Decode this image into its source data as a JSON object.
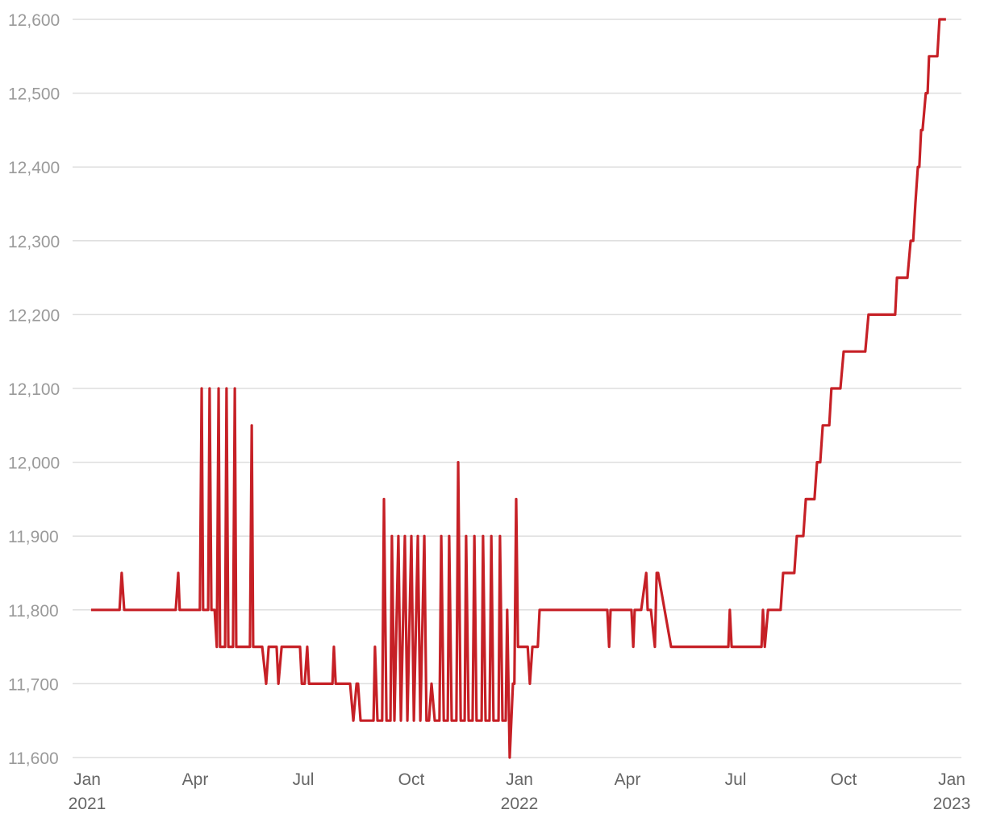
{
  "chart_data": {
    "type": "line",
    "x": [
      0.11,
      0.9,
      0.96,
      1.03,
      2.46,
      2.53,
      2.57,
      3.13,
      3.18,
      3.22,
      3.36,
      3.4,
      3.45,
      3.54,
      3.6,
      3.65,
      3.69,
      3.83,
      3.87,
      3.92,
      4.05,
      4.1,
      4.14,
      4.52,
      4.57,
      4.61,
      4.86,
      4.97,
      5.04,
      5.26,
      5.31,
      5.4,
      5.91,
      5.96,
      6.04,
      6.11,
      6.16,
      6.81,
      6.85,
      6.9,
      7.3,
      7.39,
      7.48,
      7.52,
      7.59,
      7.95,
      7.99,
      8.06,
      8.19,
      8.24,
      8.31,
      8.42,
      8.46,
      8.53,
      8.64,
      8.71,
      8.82,
      8.89,
      9.0,
      9.07,
      9.18,
      9.25,
      9.36,
      9.42,
      9.49,
      9.56,
      9.65,
      9.78,
      9.83,
      9.9,
      10.01,
      10.05,
      10.12,
      10.25,
      10.3,
      10.37,
      10.48,
      10.52,
      10.59,
      10.7,
      10.75,
      10.81,
      10.95,
      10.99,
      11.06,
      11.17,
      11.22,
      11.28,
      11.42,
      11.46,
      11.53,
      11.62,
      11.66,
      11.73,
      11.82,
      11.86,
      11.91,
      11.96,
      12.23,
      12.29,
      12.36,
      12.51,
      12.56,
      14.44,
      14.49,
      14.53,
      15.11,
      15.16,
      15.2,
      15.38,
      15.52,
      15.56,
      15.65,
      15.76,
      15.81,
      15.85,
      16.21,
      17.8,
      17.84,
      17.89,
      18.72,
      18.76,
      18.81,
      18.9,
      19.25,
      19.32,
      19.63,
      19.7,
      19.88,
      19.95,
      20.19,
      20.26,
      20.35,
      20.42,
      20.6,
      20.66,
      20.91,
      21.0,
      21.6,
      21.69,
      22.43,
      22.48,
      22.77,
      22.86,
      22.93,
      22.99,
      23.06,
      23.1,
      23.15,
      23.19,
      23.28,
      23.33,
      23.37,
      23.6,
      23.66,
      23.84
    ],
    "series": [
      {
        "color": "#c62026",
        "values": [
          11800,
          11800,
          11850,
          11800,
          11800,
          11850,
          11800,
          11800,
          12100,
          11800,
          11800,
          12100,
          11800,
          11800,
          11750,
          12100,
          11750,
          11750,
          12100,
          11750,
          11750,
          12100,
          11750,
          11750,
          12050,
          11750,
          11750,
          11700,
          11750,
          11750,
          11700,
          11750,
          11750,
          11700,
          11700,
          11750,
          11700,
          11700,
          11750,
          11700,
          11700,
          11650,
          11700,
          11700,
          11650,
          11650,
          11750,
          11650,
          11650,
          11950,
          11650,
          11650,
          11900,
          11650,
          11900,
          11650,
          11900,
          11650,
          11900,
          11650,
          11900,
          11650,
          11900,
          11650,
          11650,
          11700,
          11650,
          11650,
          11900,
          11650,
          11650,
          11900,
          11650,
          11650,
          12000,
          11650,
          11650,
          11900,
          11650,
          11650,
          11900,
          11650,
          11650,
          11900,
          11650,
          11650,
          11900,
          11650,
          11650,
          11900,
          11650,
          11650,
          11800,
          11600,
          11700,
          11700,
          11950,
          11750,
          11750,
          11700,
          11750,
          11750,
          11800,
          11800,
          11750,
          11800,
          11800,
          11750,
          11800,
          11800,
          11850,
          11800,
          11800,
          11750,
          11850,
          11850,
          11750,
          11750,
          11800,
          11750,
          11750,
          11800,
          11750,
          11800,
          11800,
          11850,
          11850,
          11900,
          11900,
          11950,
          11950,
          12000,
          12000,
          12050,
          12050,
          12100,
          12100,
          12150,
          12150,
          12200,
          12200,
          12250,
          12250,
          12300,
          12300,
          12350,
          12400,
          12400,
          12450,
          12450,
          12500,
          12500,
          12550,
          12550,
          12600,
          12600
        ]
      }
    ],
    "xlim": [
      0,
      24
    ],
    "xticks": [
      {
        "value": 0,
        "label": "Jan 2021"
      },
      {
        "value": 3,
        "label": "Apr"
      },
      {
        "value": 6,
        "label": "Jul"
      },
      {
        "value": 9,
        "label": "Oct"
      },
      {
        "value": 12,
        "label": "Jan 2022"
      },
      {
        "value": 15,
        "label": "Apr"
      },
      {
        "value": 18,
        "label": "Jul"
      },
      {
        "value": 21,
        "label": "Oct"
      },
      {
        "value": 24,
        "label": "Jan 2023"
      }
    ],
    "ylim": [
      11600,
      12600
    ],
    "yticks": [
      {
        "value": 11600,
        "label": "11,600"
      },
      {
        "value": 11700,
        "label": "11,700"
      },
      {
        "value": 11800,
        "label": "11,800"
      },
      {
        "value": 11900,
        "label": "11,900"
      },
      {
        "value": 12000,
        "label": "12,000"
      },
      {
        "value": 12100,
        "label": "12,100"
      },
      {
        "value": 12200,
        "label": "12,200"
      },
      {
        "value": 12300,
        "label": "12,300"
      },
      {
        "value": 12400,
        "label": "12,400"
      },
      {
        "value": 12500,
        "label": "12,500"
      },
      {
        "value": 12600,
        "label": "12,600"
      }
    ],
    "grid": true
  }
}
